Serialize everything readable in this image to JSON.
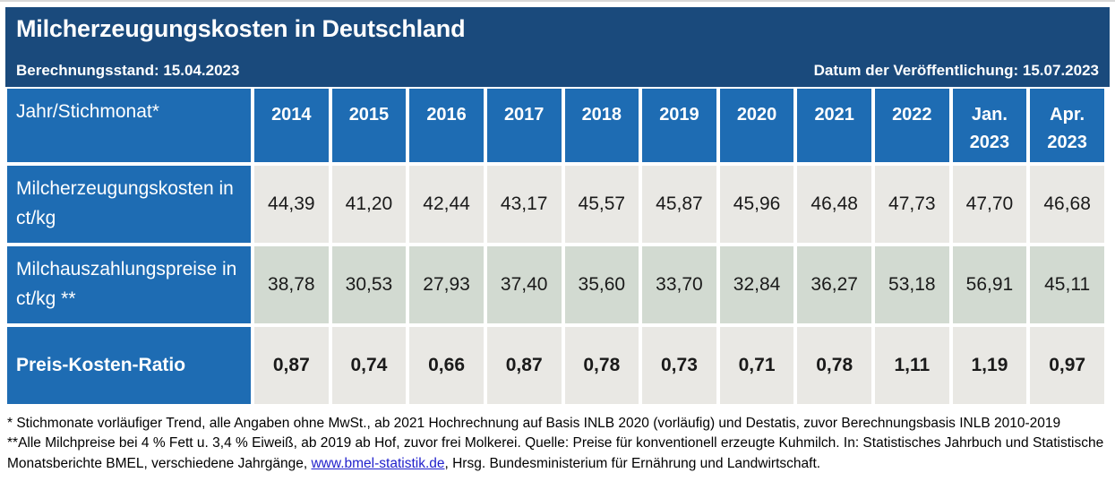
{
  "header": {
    "title": "Milcherzeugungskosten in Deutschland",
    "calculation_date": "Berechnungsstand: 15.04.2023",
    "publication_date": "Datum der Veröffentlichung: 15.07.2023"
  },
  "colors": {
    "banner_navy": "#1a4a7c",
    "table_blue": "#1e6cb3",
    "row_gray": "#e9e8e4",
    "row_green": "#d2dad1",
    "link_blue": "#2121cc"
  },
  "table": {
    "corner_label": "Jahr/Stichmonat*",
    "columns": [
      "2014",
      "2015",
      "2016",
      "2017",
      "2018",
      "2019",
      "2020",
      "2021",
      "2022",
      "Jan. 2023",
      "Apr. 2023"
    ],
    "rows": [
      {
        "label": "Milcherzeugungskosten in ct/kg",
        "values": [
          "44,39",
          "41,20",
          "42,44",
          "43,17",
          "45,57",
          "45,87",
          "45,96",
          "46,48",
          "47,73",
          "47,70",
          "46,68"
        ]
      },
      {
        "label": "Milchauszahlungspreise in ct/kg **",
        "values": [
          "38,78",
          "30,53",
          "27,93",
          "37,40",
          "35,60",
          "33,70",
          "32,84",
          "36,27",
          "53,18",
          "56,91",
          "45,11"
        ]
      },
      {
        "label": "Preis-Kosten-Ratio",
        "values": [
          "0,87",
          "0,74",
          "0,66",
          "0,87",
          "0,78",
          "0,73",
          "0,71",
          "0,78",
          "1,11",
          "1,19",
          "0,97"
        ]
      }
    ]
  },
  "chart_data": {
    "type": "table",
    "title": "Milcherzeugungskosten in Deutschland",
    "categories": [
      "2014",
      "2015",
      "2016",
      "2017",
      "2018",
      "2019",
      "2020",
      "2021",
      "2022",
      "Jan. 2023",
      "Apr. 2023"
    ],
    "series": [
      {
        "name": "Milcherzeugungskosten in ct/kg",
        "values": [
          44.39,
          41.2,
          42.44,
          43.17,
          45.57,
          45.87,
          45.96,
          46.48,
          47.73,
          47.7,
          46.68
        ]
      },
      {
        "name": "Milchauszahlungspreise in ct/kg **",
        "values": [
          38.78,
          30.53,
          27.93,
          37.4,
          35.6,
          33.7,
          32.84,
          36.27,
          53.18,
          56.91,
          45.11
        ]
      },
      {
        "name": "Preis-Kosten-Ratio",
        "values": [
          0.87,
          0.74,
          0.66,
          0.87,
          0.78,
          0.73,
          0.71,
          0.78,
          1.11,
          1.19,
          0.97
        ]
      }
    ]
  },
  "footnotes": {
    "note1": "* Stichmonate vorläufiger Trend, alle Angaben ohne MwSt., ab 2021 Hochrechnung auf Basis INLB 2020 (vorläufig) und Destatis, zuvor Berechnungsbasis INLB 2010-2019",
    "note2_before": "**Alle Milchpreise bei 4 % Fett u. 3,4 % Eiweiß, ab 2019 ab Hof, zuvor frei Molkerei. Quelle: Preise für konventionell erzeugte Kuhmilch. In: Statistisches Jahrbuch und Statistische Monatsberichte BMEL, verschiedene Jahrgänge, ",
    "note2_link": "www.bmel-statistik.de",
    "note2_after": ", Hrsg. Bundesministerium für Ernährung und Landwirtschaft."
  }
}
